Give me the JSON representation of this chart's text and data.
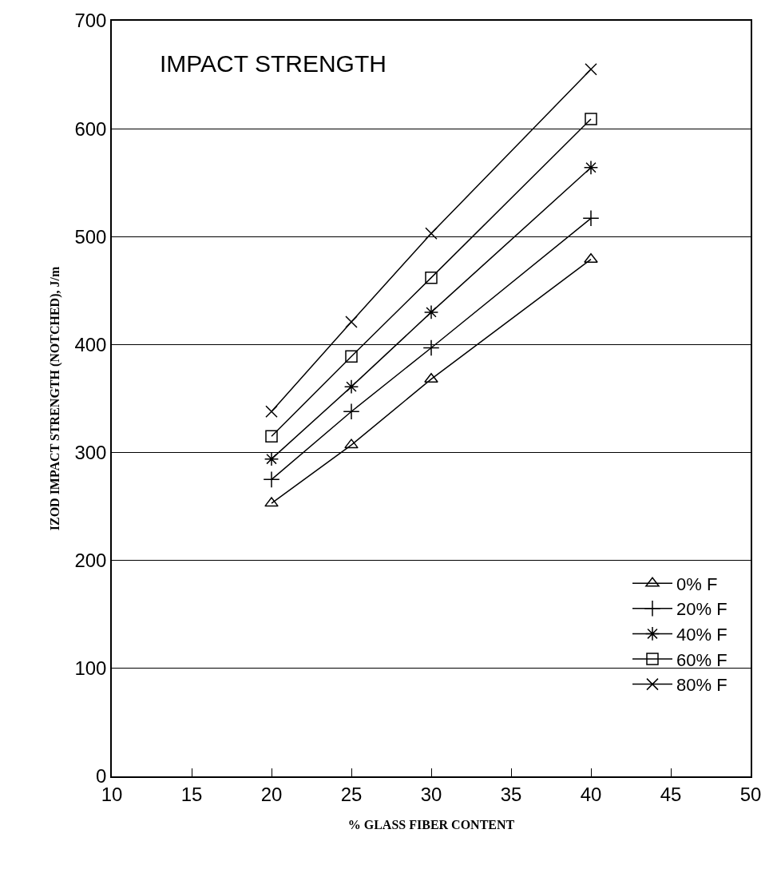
{
  "chart_data": {
    "type": "line",
    "title": "IMPACT STRENGTH",
    "xlabel": "% GLASS FIBER CONTENT",
    "ylabel": "IZOD IMPACT STRENGTH (NOTCHED), J/m",
    "x": [
      20,
      25,
      30,
      40
    ],
    "series": [
      {
        "name": "0% F",
        "color": "#000000",
        "marker": "triangle",
        "values": [
          253,
          307,
          368,
          479
        ]
      },
      {
        "name": "20% F",
        "color": "#000000",
        "marker": "plus",
        "values": [
          275,
          338,
          397,
          517
        ]
      },
      {
        "name": "40% F",
        "color": "#000000",
        "marker": "cross",
        "values": [
          294,
          361,
          430,
          564
        ]
      },
      {
        "name": "60% F",
        "color": "#000000",
        "marker": "square",
        "values": [
          315,
          389,
          462,
          609
        ]
      },
      {
        "name": "80% F",
        "color": "#000000",
        "marker": "x",
        "values": [
          338,
          421,
          503,
          655
        ]
      }
    ],
    "xlim": [
      10,
      50
    ],
    "xticks": [
      10,
      15,
      20,
      25,
      30,
      35,
      40,
      45,
      50
    ],
    "ylim": [
      0,
      700
    ],
    "yticks": [
      0,
      100,
      200,
      300,
      400,
      500,
      600,
      700
    ],
    "grid": "y",
    "legend": "bottom right",
    "line_style": "solid"
  }
}
